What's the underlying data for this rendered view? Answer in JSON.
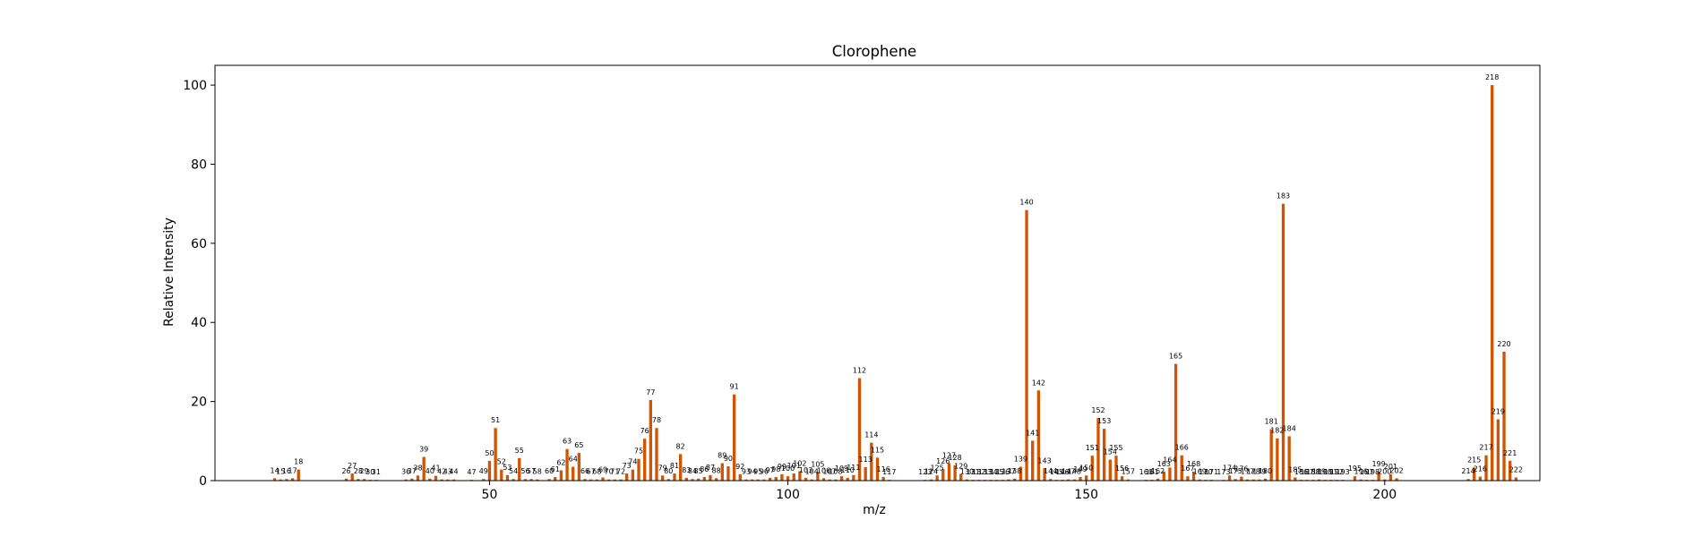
{
  "chart_data": {
    "type": "bar",
    "title": "Clorophene",
    "xlabel": "m/z",
    "ylabel": "Relative Intensity",
    "xlim": [
      4,
      226
    ],
    "ylim": [
      0,
      105
    ],
    "xticks": [
      50,
      100,
      150,
      200
    ],
    "yticks": [
      0,
      20,
      40,
      60,
      80,
      100
    ],
    "grid": false,
    "legend": false,
    "colors": {
      "bar": "#d35400"
    },
    "peaks": [
      {
        "mz": 14,
        "intensity": 0.6,
        "label": "14"
      },
      {
        "mz": 15,
        "intensity": 0.3,
        "label": "15"
      },
      {
        "mz": 16,
        "intensity": 0.4,
        "label": "16"
      },
      {
        "mz": 17,
        "intensity": 0.6,
        "label": "17"
      },
      {
        "mz": 18,
        "intensity": 2.8,
        "label": "18"
      },
      {
        "mz": 26,
        "intensity": 0.5,
        "label": "26"
      },
      {
        "mz": 27,
        "intensity": 1.8,
        "label": "27"
      },
      {
        "mz": 28,
        "intensity": 0.4,
        "label": "28"
      },
      {
        "mz": 29,
        "intensity": 0.4,
        "label": "29"
      },
      {
        "mz": 30,
        "intensity": 0.2,
        "label": "30"
      },
      {
        "mz": 31,
        "intensity": 0.2,
        "label": "31"
      },
      {
        "mz": 36,
        "intensity": 0.3,
        "label": "36"
      },
      {
        "mz": 37,
        "intensity": 0.5,
        "label": "37"
      },
      {
        "mz": 38,
        "intensity": 1.3,
        "label": "38"
      },
      {
        "mz": 39,
        "intensity": 6.0,
        "label": "39"
      },
      {
        "mz": 40,
        "intensity": 0.5,
        "label": "40"
      },
      {
        "mz": 41,
        "intensity": 1.2,
        "label": "41"
      },
      {
        "mz": 42,
        "intensity": 0.3,
        "label": "42"
      },
      {
        "mz": 43,
        "intensity": 0.3,
        "label": "43"
      },
      {
        "mz": 44,
        "intensity": 0.3,
        "label": "44"
      },
      {
        "mz": 47,
        "intensity": 0.2,
        "label": "47"
      },
      {
        "mz": 49,
        "intensity": 0.4,
        "label": "49"
      },
      {
        "mz": 50,
        "intensity": 5.0,
        "label": "50"
      },
      {
        "mz": 51,
        "intensity": 13.3,
        "label": "51"
      },
      {
        "mz": 52,
        "intensity": 2.8,
        "label": "52"
      },
      {
        "mz": 53,
        "intensity": 1.4,
        "label": "53"
      },
      {
        "mz": 54,
        "intensity": 0.4,
        "label": "54"
      },
      {
        "mz": 55,
        "intensity": 5.7,
        "label": "55"
      },
      {
        "mz": 56,
        "intensity": 0.4,
        "label": "56"
      },
      {
        "mz": 57,
        "intensity": 0.4,
        "label": "57"
      },
      {
        "mz": 58,
        "intensity": 0.3,
        "label": "58"
      },
      {
        "mz": 60,
        "intensity": 0.4,
        "label": "60"
      },
      {
        "mz": 61,
        "intensity": 0.9,
        "label": "61"
      },
      {
        "mz": 62,
        "intensity": 2.6,
        "label": "62"
      },
      {
        "mz": 63,
        "intensity": 8.0,
        "label": "63"
      },
      {
        "mz": 64,
        "intensity": 3.5,
        "label": "64"
      },
      {
        "mz": 65,
        "intensity": 7.0,
        "label": "65"
      },
      {
        "mz": 66,
        "intensity": 0.4,
        "label": "66"
      },
      {
        "mz": 67,
        "intensity": 0.3,
        "label": "67"
      },
      {
        "mz": 68,
        "intensity": 0.3,
        "label": "68"
      },
      {
        "mz": 69,
        "intensity": 0.8,
        "label": "69"
      },
      {
        "mz": 70,
        "intensity": 0.3,
        "label": "70"
      },
      {
        "mz": 71,
        "intensity": 0.3,
        "label": "71"
      },
      {
        "mz": 72,
        "intensity": 0.3,
        "label": "72"
      },
      {
        "mz": 73,
        "intensity": 1.8,
        "label": "73"
      },
      {
        "mz": 74,
        "intensity": 2.8,
        "label": "74"
      },
      {
        "mz": 75,
        "intensity": 5.5,
        "label": "75"
      },
      {
        "mz": 76,
        "intensity": 10.6,
        "label": "76"
      },
      {
        "mz": 77,
        "intensity": 20.4,
        "label": "77"
      },
      {
        "mz": 78,
        "intensity": 13.3,
        "label": "78"
      },
      {
        "mz": 79,
        "intensity": 1.3,
        "label": "79"
      },
      {
        "mz": 80,
        "intensity": 0.4,
        "label": "80"
      },
      {
        "mz": 81,
        "intensity": 1.8,
        "label": "81"
      },
      {
        "mz": 82,
        "intensity": 6.7,
        "label": "82"
      },
      {
        "mz": 83,
        "intensity": 0.7,
        "label": "83"
      },
      {
        "mz": 84,
        "intensity": 0.4,
        "label": "84"
      },
      {
        "mz": 85,
        "intensity": 0.5,
        "label": "85"
      },
      {
        "mz": 86,
        "intensity": 0.9,
        "label": "86"
      },
      {
        "mz": 87,
        "intensity": 1.4,
        "label": "87"
      },
      {
        "mz": 88,
        "intensity": 0.6,
        "label": "88"
      },
      {
        "mz": 89,
        "intensity": 4.4,
        "label": "89"
      },
      {
        "mz": 90,
        "intensity": 3.6,
        "label": "90"
      },
      {
        "mz": 91,
        "intensity": 21.8,
        "label": "91"
      },
      {
        "mz": 92,
        "intensity": 1.6,
        "label": "92"
      },
      {
        "mz": 93,
        "intensity": 0.3,
        "label": "93"
      },
      {
        "mz": 94,
        "intensity": 0.3,
        "label": "94"
      },
      {
        "mz": 95,
        "intensity": 0.3,
        "label": "95"
      },
      {
        "mz": 96,
        "intensity": 0.3,
        "label": "96"
      },
      {
        "mz": 97,
        "intensity": 0.7,
        "label": "97"
      },
      {
        "mz": 98,
        "intensity": 0.9,
        "label": "98"
      },
      {
        "mz": 99,
        "intensity": 1.6,
        "label": "99"
      },
      {
        "mz": 100,
        "intensity": 1.1,
        "label": "100"
      },
      {
        "mz": 101,
        "intensity": 1.8,
        "label": "101"
      },
      {
        "mz": 102,
        "intensity": 2.4,
        "label": "102"
      },
      {
        "mz": 103,
        "intensity": 0.7,
        "label": "103"
      },
      {
        "mz": 104,
        "intensity": 0.3,
        "label": "104"
      },
      {
        "mz": 105,
        "intensity": 2.1,
        "label": "105"
      },
      {
        "mz": 106,
        "intensity": 0.6,
        "label": "106"
      },
      {
        "mz": 107,
        "intensity": 0.3,
        "label": "107"
      },
      {
        "mz": 108,
        "intensity": 0.3,
        "label": "108"
      },
      {
        "mz": 109,
        "intensity": 1.1,
        "label": "109"
      },
      {
        "mz": 110,
        "intensity": 0.7,
        "label": "110"
      },
      {
        "mz": 111,
        "intensity": 1.4,
        "label": "111"
      },
      {
        "mz": 112,
        "intensity": 25.9,
        "label": "112"
      },
      {
        "mz": 113,
        "intensity": 3.4,
        "label": "113"
      },
      {
        "mz": 114,
        "intensity": 9.6,
        "label": "114"
      },
      {
        "mz": 115,
        "intensity": 5.8,
        "label": "115"
      },
      {
        "mz": 116,
        "intensity": 0.9,
        "label": "116"
      },
      {
        "mz": 117,
        "intensity": 0.2,
        "label": "117"
      },
      {
        "mz": 123,
        "intensity": 0.2,
        "label": "123"
      },
      {
        "mz": 124,
        "intensity": 0.3,
        "label": "124"
      },
      {
        "mz": 125,
        "intensity": 1.3,
        "label": "125"
      },
      {
        "mz": 126,
        "intensity": 2.9,
        "label": "126"
      },
      {
        "mz": 127,
        "intensity": 4.4,
        "label": "127"
      },
      {
        "mz": 128,
        "intensity": 3.9,
        "label": "128"
      },
      {
        "mz": 129,
        "intensity": 1.7,
        "label": "129"
      },
      {
        "mz": 130,
        "intensity": 0.3,
        "label": "130"
      },
      {
        "mz": 131,
        "intensity": 0.2,
        "label": "131"
      },
      {
        "mz": 132,
        "intensity": 0.2,
        "label": "132"
      },
      {
        "mz": 133,
        "intensity": 0.2,
        "label": "133"
      },
      {
        "mz": 134,
        "intensity": 0.2,
        "label": "134"
      },
      {
        "mz": 135,
        "intensity": 0.2,
        "label": "135"
      },
      {
        "mz": 136,
        "intensity": 0.2,
        "label": "136"
      },
      {
        "mz": 137,
        "intensity": 0.3,
        "label": "137"
      },
      {
        "mz": 138,
        "intensity": 0.5,
        "label": "138"
      },
      {
        "mz": 139,
        "intensity": 3.5,
        "label": "139"
      },
      {
        "mz": 140,
        "intensity": 68.4,
        "label": "140"
      },
      {
        "mz": 141,
        "intensity": 10.1,
        "label": "141"
      },
      {
        "mz": 142,
        "intensity": 22.8,
        "label": "142"
      },
      {
        "mz": 143,
        "intensity": 3.1,
        "label": "143"
      },
      {
        "mz": 144,
        "intensity": 0.4,
        "label": "144"
      },
      {
        "mz": 145,
        "intensity": 0.2,
        "label": "145"
      },
      {
        "mz": 146,
        "intensity": 0.2,
        "label": "146"
      },
      {
        "mz": 147,
        "intensity": 0.3,
        "label": "147"
      },
      {
        "mz": 148,
        "intensity": 0.3,
        "label": "148"
      },
      {
        "mz": 149,
        "intensity": 0.9,
        "label": "149"
      },
      {
        "mz": 150,
        "intensity": 1.3,
        "label": "150"
      },
      {
        "mz": 151,
        "intensity": 6.3,
        "label": "151"
      },
      {
        "mz": 152,
        "intensity": 15.8,
        "label": "152"
      },
      {
        "mz": 153,
        "intensity": 13.1,
        "label": "153"
      },
      {
        "mz": 154,
        "intensity": 5.3,
        "label": "154"
      },
      {
        "mz": 155,
        "intensity": 6.3,
        "label": "155"
      },
      {
        "mz": 156,
        "intensity": 1.1,
        "label": "156"
      },
      {
        "mz": 157,
        "intensity": 0.3,
        "label": "157"
      },
      {
        "mz": 160,
        "intensity": 0.2,
        "label": "160"
      },
      {
        "mz": 161,
        "intensity": 0.2,
        "label": "161"
      },
      {
        "mz": 162,
        "intensity": 0.5,
        "label": "162"
      },
      {
        "mz": 163,
        "intensity": 2.3,
        "label": "163"
      },
      {
        "mz": 164,
        "intensity": 3.3,
        "label": "164"
      },
      {
        "mz": 165,
        "intensity": 29.5,
        "label": "165"
      },
      {
        "mz": 166,
        "intensity": 6.4,
        "label": "166"
      },
      {
        "mz": 167,
        "intensity": 1.1,
        "label": "167"
      },
      {
        "mz": 168,
        "intensity": 2.3,
        "label": "168"
      },
      {
        "mz": 169,
        "intensity": 0.3,
        "label": "169"
      },
      {
        "mz": 170,
        "intensity": 0.2,
        "label": "170"
      },
      {
        "mz": 171,
        "intensity": 0.2,
        "label": "171"
      },
      {
        "mz": 173,
        "intensity": 0.2,
        "label": "173"
      },
      {
        "mz": 174,
        "intensity": 1.3,
        "label": "174"
      },
      {
        "mz": 175,
        "intensity": 0.4,
        "label": "175"
      },
      {
        "mz": 176,
        "intensity": 1.0,
        "label": "176"
      },
      {
        "mz": 177,
        "intensity": 0.3,
        "label": "177"
      },
      {
        "mz": 178,
        "intensity": 0.3,
        "label": "178"
      },
      {
        "mz": 179,
        "intensity": 0.3,
        "label": "179"
      },
      {
        "mz": 180,
        "intensity": 0.5,
        "label": "180"
      },
      {
        "mz": 181,
        "intensity": 13.0,
        "label": "181"
      },
      {
        "mz": 182,
        "intensity": 10.7,
        "label": "182"
      },
      {
        "mz": 183,
        "intensity": 70.0,
        "label": "183"
      },
      {
        "mz": 184,
        "intensity": 11.2,
        "label": "184"
      },
      {
        "mz": 185,
        "intensity": 0.8,
        "label": "185"
      },
      {
        "mz": 186,
        "intensity": 0.2,
        "label": "186"
      },
      {
        "mz": 187,
        "intensity": 0.2,
        "label": "187"
      },
      {
        "mz": 188,
        "intensity": 0.2,
        "label": "188"
      },
      {
        "mz": 189,
        "intensity": 0.3,
        "label": "189"
      },
      {
        "mz": 190,
        "intensity": 0.2,
        "label": "190"
      },
      {
        "mz": 191,
        "intensity": 0.2,
        "label": "191"
      },
      {
        "mz": 192,
        "intensity": 0.2,
        "label": "192"
      },
      {
        "mz": 193,
        "intensity": 0.2,
        "label": "193"
      },
      {
        "mz": 195,
        "intensity": 1.1,
        "label": "195"
      },
      {
        "mz": 196,
        "intensity": 0.3,
        "label": "196"
      },
      {
        "mz": 197,
        "intensity": 0.2,
        "label": "197"
      },
      {
        "mz": 198,
        "intensity": 0.2,
        "label": "198"
      },
      {
        "mz": 199,
        "intensity": 2.3,
        "label": "199"
      },
      {
        "mz": 200,
        "intensity": 0.3,
        "label": "200"
      },
      {
        "mz": 201,
        "intensity": 1.6,
        "label": "201"
      },
      {
        "mz": 202,
        "intensity": 0.6,
        "label": "202"
      },
      {
        "mz": 214,
        "intensity": 0.4,
        "label": "214"
      },
      {
        "mz": 215,
        "intensity": 3.3,
        "label": "215"
      },
      {
        "mz": 216,
        "intensity": 1.0,
        "label": "216"
      },
      {
        "mz": 217,
        "intensity": 6.4,
        "label": "217"
      },
      {
        "mz": 218,
        "intensity": 100.0,
        "label": "218"
      },
      {
        "mz": 219,
        "intensity": 15.5,
        "label": "219"
      },
      {
        "mz": 220,
        "intensity": 32.6,
        "label": "220"
      },
      {
        "mz": 221,
        "intensity": 5.0,
        "label": "221"
      },
      {
        "mz": 222,
        "intensity": 0.8,
        "label": "222"
      }
    ]
  }
}
